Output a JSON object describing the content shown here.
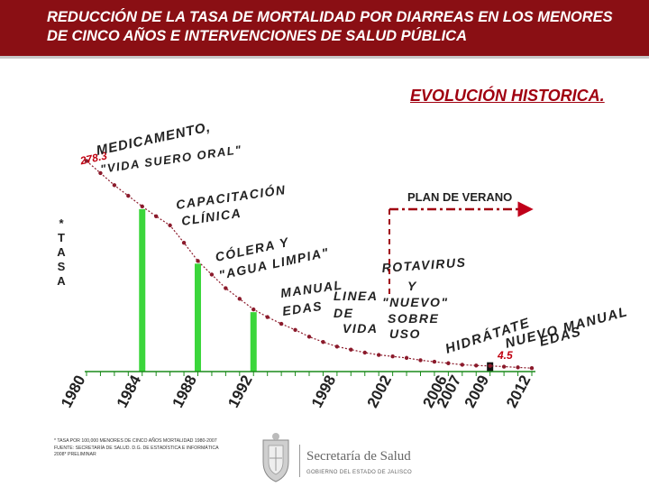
{
  "header": {
    "title": "REDUCCIÓN DE LA TASA DE MORTALIDAD POR DIARREAS EN LOS MENORES DE CINCO AÑOS E INTERVENCIONES DE SALUD PÚBLICA"
  },
  "colors": {
    "header_bg": "#8a0f14",
    "curve": "#8b1a2b",
    "bar_green": "#3bd63b",
    "bar_black": "#111111",
    "arrow_red": "#c0001a",
    "dash_red": "#a00010"
  },
  "chart_data": {
    "type": "line",
    "title": "EVOLUCIÓN HISTORICA.",
    "ylabel": "* TASA",
    "x_tick_labels": [
      "1980",
      "1984",
      "1988",
      "1992",
      "1998",
      "2002",
      "2006",
      "2007",
      "2009",
      "2012"
    ],
    "years": [
      1980,
      1981,
      1982,
      1983,
      1984,
      1985,
      1986,
      1987,
      1988,
      1989,
      1990,
      1991,
      1992,
      1993,
      1994,
      1995,
      1996,
      1997,
      1998,
      1999,
      2000,
      2001,
      2002,
      2003,
      2004,
      2005,
      2006,
      2007,
      2008,
      2009,
      2010,
      2011,
      2012
    ],
    "values": [
      278,
      262,
      246,
      232,
      218,
      205,
      193,
      170,
      146,
      128,
      110,
      96,
      82,
      72,
      63,
      55,
      46,
      39,
      33,
      29,
      25,
      22,
      20,
      18,
      15,
      13,
      11,
      9,
      8,
      7.5,
      6.5,
      5.5,
      4.5
    ],
    "point_labels": [
      {
        "year": 1980,
        "text": "278.3"
      },
      {
        "year": 2012,
        "text": "4.5"
      }
    ],
    "ylim": [
      0,
      300
    ],
    "interventions": [
      {
        "year": 1984,
        "color": "green",
        "label": "MEDICAMENTO, \"VIDA SUERO ORAL\""
      },
      {
        "year": 1988,
        "color": "green",
        "label": "CAPACITACIÓN CLÍNICA"
      },
      {
        "year": 1992,
        "color": "green",
        "label": "CÓLERA Y \"AGUA LIMPIA\""
      },
      {
        "year": 2009,
        "color": "black",
        "label": "PLAN DE VERANO"
      }
    ],
    "annotations": {
      "medicamento_line1": "MEDICAMENTO,",
      "medicamento_line2": "\"VIDA SUERO ORAL\"",
      "capacitacion_line1": "CAPACITACIÓN",
      "capacitacion_line2": "CLÍNICA",
      "colera_line1": "CÓLERA Y",
      "colera_line2": "\"AGUA LIMPIA\"",
      "manual_line1": "MANUAL",
      "manual_line2": "EDAS",
      "linea_line1": "LINEA",
      "linea_line2": "DE",
      "linea_line3": "VIDA",
      "rotavirus_line1": "ROTAVIRUS",
      "rotavirus_line2": "Y",
      "rotavirus_line3": "\"NUEVO\"",
      "rotavirus_line4": "SOBRE",
      "rotavirus_line5": "USO",
      "hidratate": "HIDRÁTATE",
      "nuevo_manual_line1": "NUEVO MANUAL",
      "nuevo_manual_line2": "EDAS",
      "plan_verano": "PLAN DE VERANO"
    }
  },
  "footnote": {
    "line1": "* TASA POR 100,000 MENORES DE CINCO AÑOS MORTALIDAD 1980-2007",
    "line2": "FUENTE: SECRETARÍA DE SALUD. D.G. DE ESTADÍSTICA E INFORMÁTICA",
    "line3": "2008* PRELIMINAR"
  },
  "logo": {
    "name": "Secretaría de Salud",
    "sub": "GOBIERNO DEL ESTADO DE JALISCO"
  }
}
